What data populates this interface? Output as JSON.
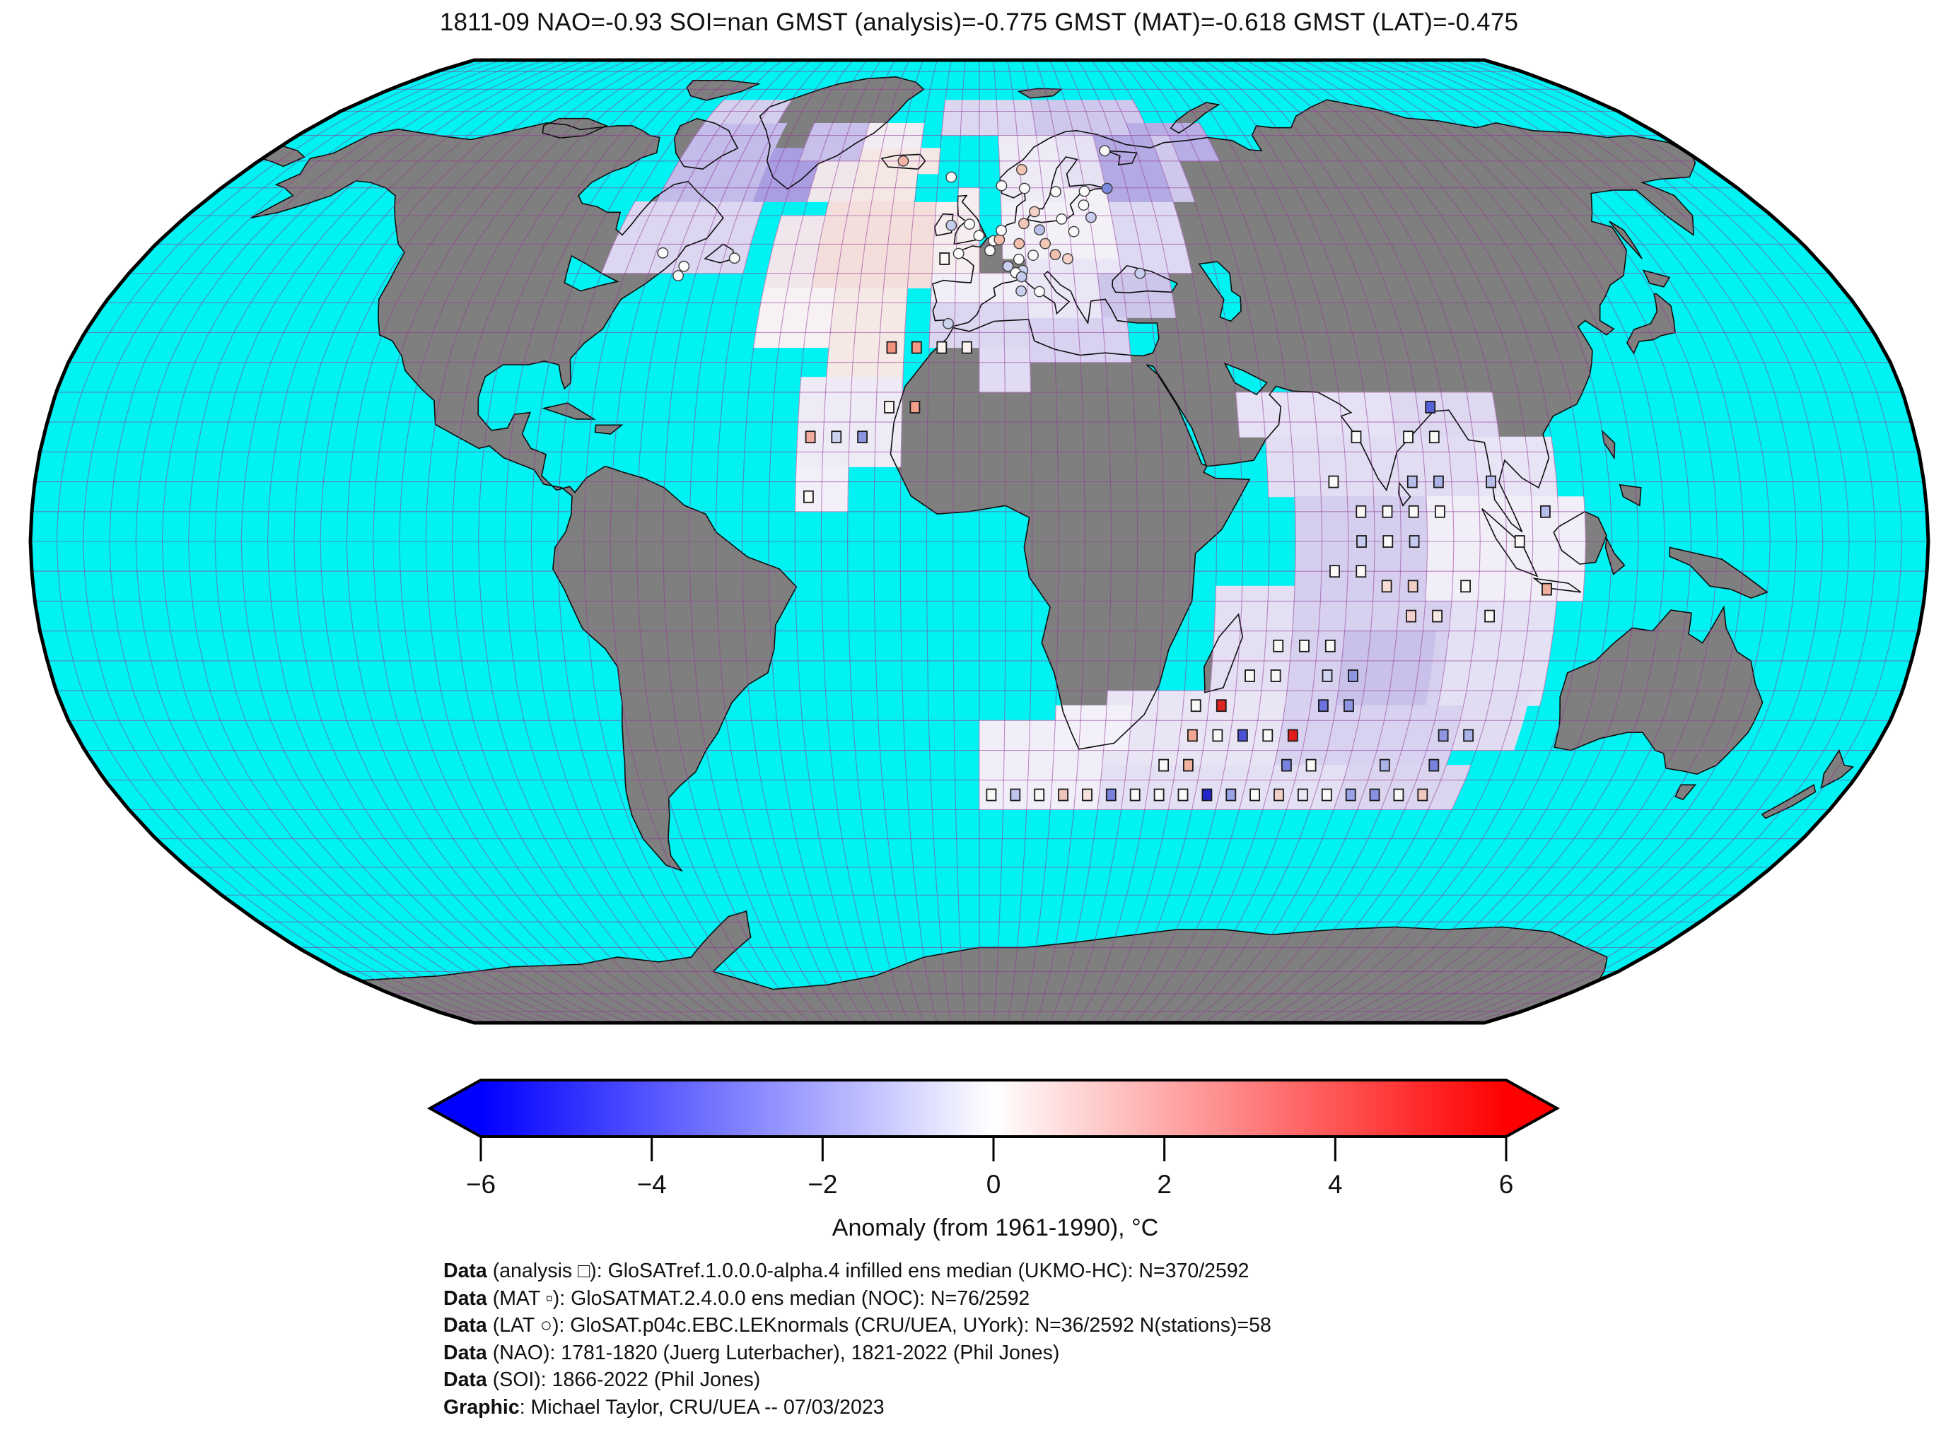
{
  "title": "1811-09 NAO=-0.93 SOI=nan GMST (analysis)=-0.775 GMST (MAT)=-0.618 GMST (LAT)=-0.475",
  "colorbar": {
    "label": "Anomaly (from 1961-1990), °C",
    "min": -6,
    "max": 6,
    "tick_values": [
      -6,
      -4,
      -2,
      0,
      2,
      4,
      6
    ],
    "tick_labels": [
      "−6",
      "−4",
      "−2",
      "0",
      "2",
      "4",
      "6"
    ],
    "gradient": [
      "#0000ff",
      "#ffffff",
      "#ff0000"
    ]
  },
  "footer": {
    "lines": [
      {
        "prefix": "Data",
        "text": " (analysis □): GloSATref.1.0.0.0-alpha.4 infilled ens median (UKMO-HC): N=370/2592"
      },
      {
        "prefix": "Data",
        "text": " (MAT ▫): GloSATMAT.2.4.0.0 ens median (NOC): N=76/2592"
      },
      {
        "prefix": "Data",
        "text": " (LAT ○): GloSAT.p04c.EBC.LEKnormals (CRU/UEA, UYork): N=36/2592 N(stations)=58"
      },
      {
        "prefix": "Data",
        "text": " (NAO): 1781-1820 (Juerg Luterbacher), 1821-2022 (Phil Jones)"
      },
      {
        "prefix": "Data",
        "text": " (SOI): 1866-2022 (Phil Jones)"
      },
      {
        "prefix": "Graphic",
        "text": ": Michael Taylor, CRU/UEA -- 07/03/2023"
      }
    ]
  },
  "map": {
    "ocean_color": "#00f2f2",
    "land_color": "#7f7f7f",
    "graticule_color": "rgba(145,55,150,0.55)",
    "coast_color": "#0d0d0d",
    "border_color": "#000000",
    "graticule_step_deg": 5
  },
  "chart_data": {
    "type": "heatmap",
    "title": "1811-09 temperature anomaly map",
    "projection": "robinson",
    "date": "1811-09",
    "baseline": "1961-1990",
    "unit": "°C",
    "colorbar_range": [
      -6,
      6
    ],
    "indices": {
      "NAO": -0.93,
      "SOI": "nan",
      "GMST_analysis": -0.775,
      "GMST_MAT": -0.618,
      "GMST_LAT": -0.475
    },
    "counts": {
      "analysis": "370/2592",
      "MAT": "76/2592",
      "LAT": "36/2592",
      "LAT_stations": 58
    },
    "patches": [
      [
        -80,
        -50,
        45,
        57.5,
        "#dcd6f0"
      ],
      [
        -75,
        -52.5,
        57.5,
        72.5,
        "#c3bbe9"
      ],
      [
        -75,
        -55,
        72.5,
        77.5,
        "#d5cfee"
      ],
      [
        -52.5,
        -40,
        57.5,
        67.5,
        "#a89ee1"
      ],
      [
        -40,
        -30,
        57.5,
        65,
        "#f0e7ea"
      ],
      [
        -45,
        -30,
        65,
        72.5,
        "#c8c0ea"
      ],
      [
        -30,
        -10,
        57.5,
        67.5,
        "#f4e7e4"
      ],
      [
        -30,
        -15,
        67.5,
        72.5,
        "#f2edf3"
      ],
      [
        -10,
        15,
        70,
        77.5,
        "#dcd6f0"
      ],
      [
        15,
        45,
        70,
        77.5,
        "#cfc7ec"
      ],
      [
        40,
        60,
        65,
        72.5,
        "#b8ade5"
      ],
      [
        -35,
        -10,
        42.5,
        57.5,
        "#f4dedb"
      ],
      [
        -45,
        -35,
        42.5,
        55,
        "#f0e6ec"
      ],
      [
        -45,
        -30,
        32.5,
        42.5,
        "#f7f1f4"
      ],
      [
        -30,
        -15,
        27.5,
        42.5,
        "#f5e9e6"
      ],
      [
        -35,
        -15,
        12.5,
        27.5,
        "#eeebf6"
      ],
      [
        -35,
        -25,
        5,
        12.5,
        "#f2eff8"
      ],
      [
        -10,
        0,
        45,
        60,
        "#f6eeee"
      ],
      [
        -10,
        10,
        40,
        45,
        "#f2eef7"
      ],
      [
        -10,
        20,
        32.5,
        40,
        "#dcd7f1"
      ],
      [
        0,
        10,
        25,
        32.5,
        "#e1dcf3"
      ],
      [
        10,
        30,
        30,
        37.5,
        "#d8d2f0"
      ],
      [
        10,
        30,
        37.5,
        47.5,
        "#eae6f6"
      ],
      [
        5,
        30,
        47.5,
        60,
        "#f3f0f8"
      ],
      [
        30,
        45,
        45,
        57.5,
        "#ded9f2"
      ],
      [
        25,
        40,
        37.5,
        45,
        "#cdc6eb"
      ],
      [
        30,
        45,
        57.5,
        70,
        "#b3a9e3"
      ],
      [
        45,
        50,
        57.5,
        70,
        "#cfc8ec"
      ],
      [
        20,
        30,
        60,
        70,
        "#e6e2f4"
      ],
      [
        5,
        20,
        57.5,
        70,
        "#eeeaf6"
      ],
      [
        50,
        80,
        17.5,
        25,
        "#e6e1f4"
      ],
      [
        80,
        100,
        17.5,
        25,
        "#ded8f1"
      ],
      [
        95,
        110,
        5,
        17.5,
        "#e8e4f5"
      ],
      [
        55,
        95,
        7.5,
        17.5,
        "#e2ddf3"
      ],
      [
        60,
        85,
        -10,
        7.5,
        "#d5ceee"
      ],
      [
        85,
        115,
        -10,
        7.5,
        "#f1eef8"
      ],
      [
        45,
        60,
        -25,
        -7.5,
        "#e4dff3"
      ],
      [
        60,
        90,
        -27.5,
        -10,
        "#d7d0ef"
      ],
      [
        70,
        87.5,
        -32.5,
        -15,
        "#c9c1ea"
      ],
      [
        90,
        110,
        -27.5,
        -10,
        "#e5e1f4"
      ],
      [
        25,
        60,
        -37.5,
        -25,
        "#e9e5f5"
      ],
      [
        60,
        95,
        -37.5,
        -27.5,
        "#d8d2f0"
      ],
      [
        95,
        107.5,
        -35,
        -25,
        "#e1dcf2"
      ],
      [
        0,
        25,
        -45,
        -30,
        "#f1eef8"
      ],
      [
        25,
        75,
        -45,
        -37.5,
        "#e4e0f3"
      ],
      [
        75,
        100,
        -45,
        -37.5,
        "#dbd5f0"
      ],
      [
        15,
        30,
        -35,
        -27.5,
        "#f3f0f9"
      ],
      [
        -15,
        -5,
        57.5,
        62.5,
        "#00f2f2"
      ]
    ],
    "squares": [
      [
        32.5,
        -17.5,
        "#f2917e"
      ],
      [
        32.5,
        -12.5,
        "#f29a86"
      ],
      [
        32.5,
        -7.5,
        "#faf2ef"
      ],
      [
        32.5,
        -2.5,
        "#faf2ef"
      ],
      [
        22.5,
        -17.5,
        "#fbf6f4"
      ],
      [
        22.5,
        -12.5,
        "#f2a08c"
      ],
      [
        17.5,
        -32.5,
        "#f2ada0"
      ],
      [
        17.5,
        -27.5,
        "#ccd3f0"
      ],
      [
        17.5,
        -22.5,
        "#8e96e2"
      ],
      [
        7.5,
        -32.5,
        "#fbf7f5"
      ],
      [
        47.5,
        -7.5,
        "#fbf7f5"
      ],
      [
        22.5,
        87.5,
        "#5862d8"
      ],
      [
        17.5,
        72.5,
        "#fbf9f7"
      ],
      [
        17.5,
        82.5,
        "#fbf9f7"
      ],
      [
        17.5,
        87.5,
        "#fbf9f7"
      ],
      [
        10,
        67.5,
        "#fbf9f7"
      ],
      [
        10,
        82.5,
        "#b7bdea"
      ],
      [
        10,
        87.5,
        "#aab2e8"
      ],
      [
        10,
        97.5,
        "#b7bdea"
      ],
      [
        5,
        72.5,
        "#fbf9f7"
      ],
      [
        5,
        77.5,
        "#fbf9f7"
      ],
      [
        5,
        82.5,
        "#fbf9f7"
      ],
      [
        5,
        87.5,
        "#fbf9f7"
      ],
      [
        5,
        107.5,
        "#b7bdea"
      ],
      [
        0,
        72.5,
        "#c5cbee"
      ],
      [
        0,
        77.5,
        "#fbf9f7"
      ],
      [
        0,
        82.5,
        "#c5cbee"
      ],
      [
        0,
        102.5,
        "#fbf9f7"
      ],
      [
        -5,
        67.5,
        "#fbf9f7"
      ],
      [
        -5,
        72.5,
        "#fbf9f7"
      ],
      [
        -7.5,
        77.5,
        "#f6ddd6"
      ],
      [
        -7.5,
        82.5,
        "#f3d0c6"
      ],
      [
        -7.5,
        92.5,
        "#fbf9f7"
      ],
      [
        -8,
        108,
        "#f0b09e"
      ],
      [
        -12.5,
        82.5,
        "#f3d3c9"
      ],
      [
        -12.5,
        87.5,
        "#f8e8e3"
      ],
      [
        -12.5,
        97.5,
        "#fbf9f7"
      ],
      [
        -17.5,
        57.5,
        "#fbf9f7"
      ],
      [
        -17.5,
        62.5,
        "#fbf9f7"
      ],
      [
        -17.5,
        67.5,
        "#fbf9f7"
      ],
      [
        -22.5,
        52.5,
        "#fbf9f7"
      ],
      [
        -22.5,
        57.5,
        "#fbf9f7"
      ],
      [
        -22.5,
        67.5,
        "#cdd3f0"
      ],
      [
        -22.5,
        72.5,
        "#8e96e2"
      ],
      [
        -27.5,
        42.5,
        "#fbf9f7"
      ],
      [
        -27.5,
        47.5,
        "#e02424"
      ],
      [
        -27.5,
        67.5,
        "#6a73dc"
      ],
      [
        -27.5,
        72.5,
        "#8e96e2"
      ],
      [
        -32.5,
        42.5,
        "#f2a592"
      ],
      [
        -32.5,
        47.5,
        "#fbf9f7"
      ],
      [
        -32.5,
        52.5,
        "#4a50d4"
      ],
      [
        -32.5,
        57.5,
        "#fbf9f7"
      ],
      [
        -32.5,
        62.5,
        "#e01d1d"
      ],
      [
        -32.5,
        92.5,
        "#8e96e2"
      ],
      [
        -32.5,
        97.5,
        "#aab2e8"
      ],
      [
        -37.5,
        37.5,
        "#fbf9f7"
      ],
      [
        -37.5,
        42.5,
        "#f2b2a0"
      ],
      [
        -37.5,
        62.5,
        "#7a82e0"
      ],
      [
        -37.5,
        67.5,
        "#fbf9f7"
      ],
      [
        -37.5,
        82.5,
        "#aab2e8"
      ],
      [
        -37.5,
        92.5,
        "#7a82e0"
      ],
      [
        -42.5,
        2.5,
        "#fbf9f7"
      ],
      [
        -42.5,
        7.5,
        "#c0c5ec"
      ],
      [
        -42.5,
        12.5,
        "#fbf9f7"
      ],
      [
        -42.5,
        17.5,
        "#f0c4ba"
      ],
      [
        -42.5,
        22.5,
        "#f7e3dd"
      ],
      [
        -42.5,
        27.5,
        "#7b82de"
      ],
      [
        -42.5,
        32.5,
        "#fbf9f7"
      ],
      [
        -42.5,
        37.5,
        "#fbf9f7"
      ],
      [
        -42.5,
        42.5,
        "#fbf9f7"
      ],
      [
        -42.5,
        47.5,
        "#2626cf"
      ],
      [
        -42.5,
        52.5,
        "#9ba3e6"
      ],
      [
        -42.5,
        57.5,
        "#fbf9f7"
      ],
      [
        -42.5,
        62.5,
        "#f0cfc5"
      ],
      [
        -42.5,
        67.5,
        "#e9e9f5"
      ],
      [
        -42.5,
        72.5,
        "#fbf9f7"
      ],
      [
        -42.5,
        77.5,
        "#9ba3e6"
      ],
      [
        -42.5,
        82.5,
        "#8a91e2"
      ],
      [
        -42.5,
        87.5,
        "#fbf9f7"
      ],
      [
        -42.5,
        92.5,
        "#f0c8be"
      ]
    ],
    "circles": [
      [
        65,
        -19,
        "#f2b4a4"
      ],
      [
        62,
        -6.8,
        "#fbfbfb"
      ],
      [
        60.4,
        5.3,
        "#fbfbfb"
      ],
      [
        63.4,
        10.4,
        "#f2c4b4"
      ],
      [
        59.9,
        10.7,
        "#fbfbfb"
      ],
      [
        59.3,
        18,
        "#fbfbfb"
      ],
      [
        67,
        32,
        "#fbfbfb"
      ],
      [
        59.9,
        30.3,
        "#7b8ade"
      ],
      [
        59.4,
        24.8,
        "#fbfbfb"
      ],
      [
        56.9,
        24.1,
        "#fbfbfb"
      ],
      [
        54.7,
        25.3,
        "#c8cdee"
      ],
      [
        52.2,
        21,
        "#fbfbfb"
      ],
      [
        54.4,
        18.6,
        "#fbfbfb"
      ],
      [
        55.7,
        12.6,
        "#f4d0c6"
      ],
      [
        53.6,
        10,
        "#f4c6b8"
      ],
      [
        52.5,
        13.4,
        "#b9c0ea"
      ],
      [
        53.3,
        -6.3,
        "#c5cdee"
      ],
      [
        51.5,
        -0.1,
        "#fbfbfb"
      ],
      [
        53.5,
        -2.2,
        "#fbfbfb"
      ],
      [
        48.9,
        2.3,
        "#fbfbfb"
      ],
      [
        48.4,
        -4.5,
        "#fbfbfb"
      ],
      [
        50.6,
        3.1,
        "#fbfbfb"
      ],
      [
        50.8,
        4.4,
        "#f2baa8"
      ],
      [
        52.4,
        4.9,
        "#fbfbfb"
      ],
      [
        50.1,
        8.7,
        "#f3c0b0"
      ],
      [
        50.1,
        14.4,
        "#f3c6b6"
      ],
      [
        48.1,
        11.6,
        "#fbfbfb"
      ],
      [
        48.2,
        16.4,
        "#f3c0b0"
      ],
      [
        47.5,
        19,
        "#f5d0c5"
      ],
      [
        47.4,
        8.5,
        "#fbfbfb"
      ],
      [
        46.2,
        6.1,
        "#c9cfee"
      ],
      [
        45.5,
        9.2,
        "#ccd2ef"
      ],
      [
        45.1,
        7.7,
        "#fbfbfb"
      ],
      [
        44.4,
        8.9,
        "#c3caec"
      ],
      [
        42,
        8.7,
        "#c8cfee"
      ],
      [
        41.9,
        12.5,
        "#fbfbfb"
      ],
      [
        36.5,
        -6.3,
        "#ccd3ef"
      ],
      [
        45,
        34,
        "#c8cfee"
      ],
      [
        47.6,
        -52.7,
        "#fbfbfb"
      ],
      [
        46.2,
        -63,
        "#fbfbfb"
      ],
      [
        44.6,
        -63.6,
        "#fbfbfb"
      ],
      [
        48.5,
        -68.5,
        "#fbfbfb"
      ]
    ]
  }
}
